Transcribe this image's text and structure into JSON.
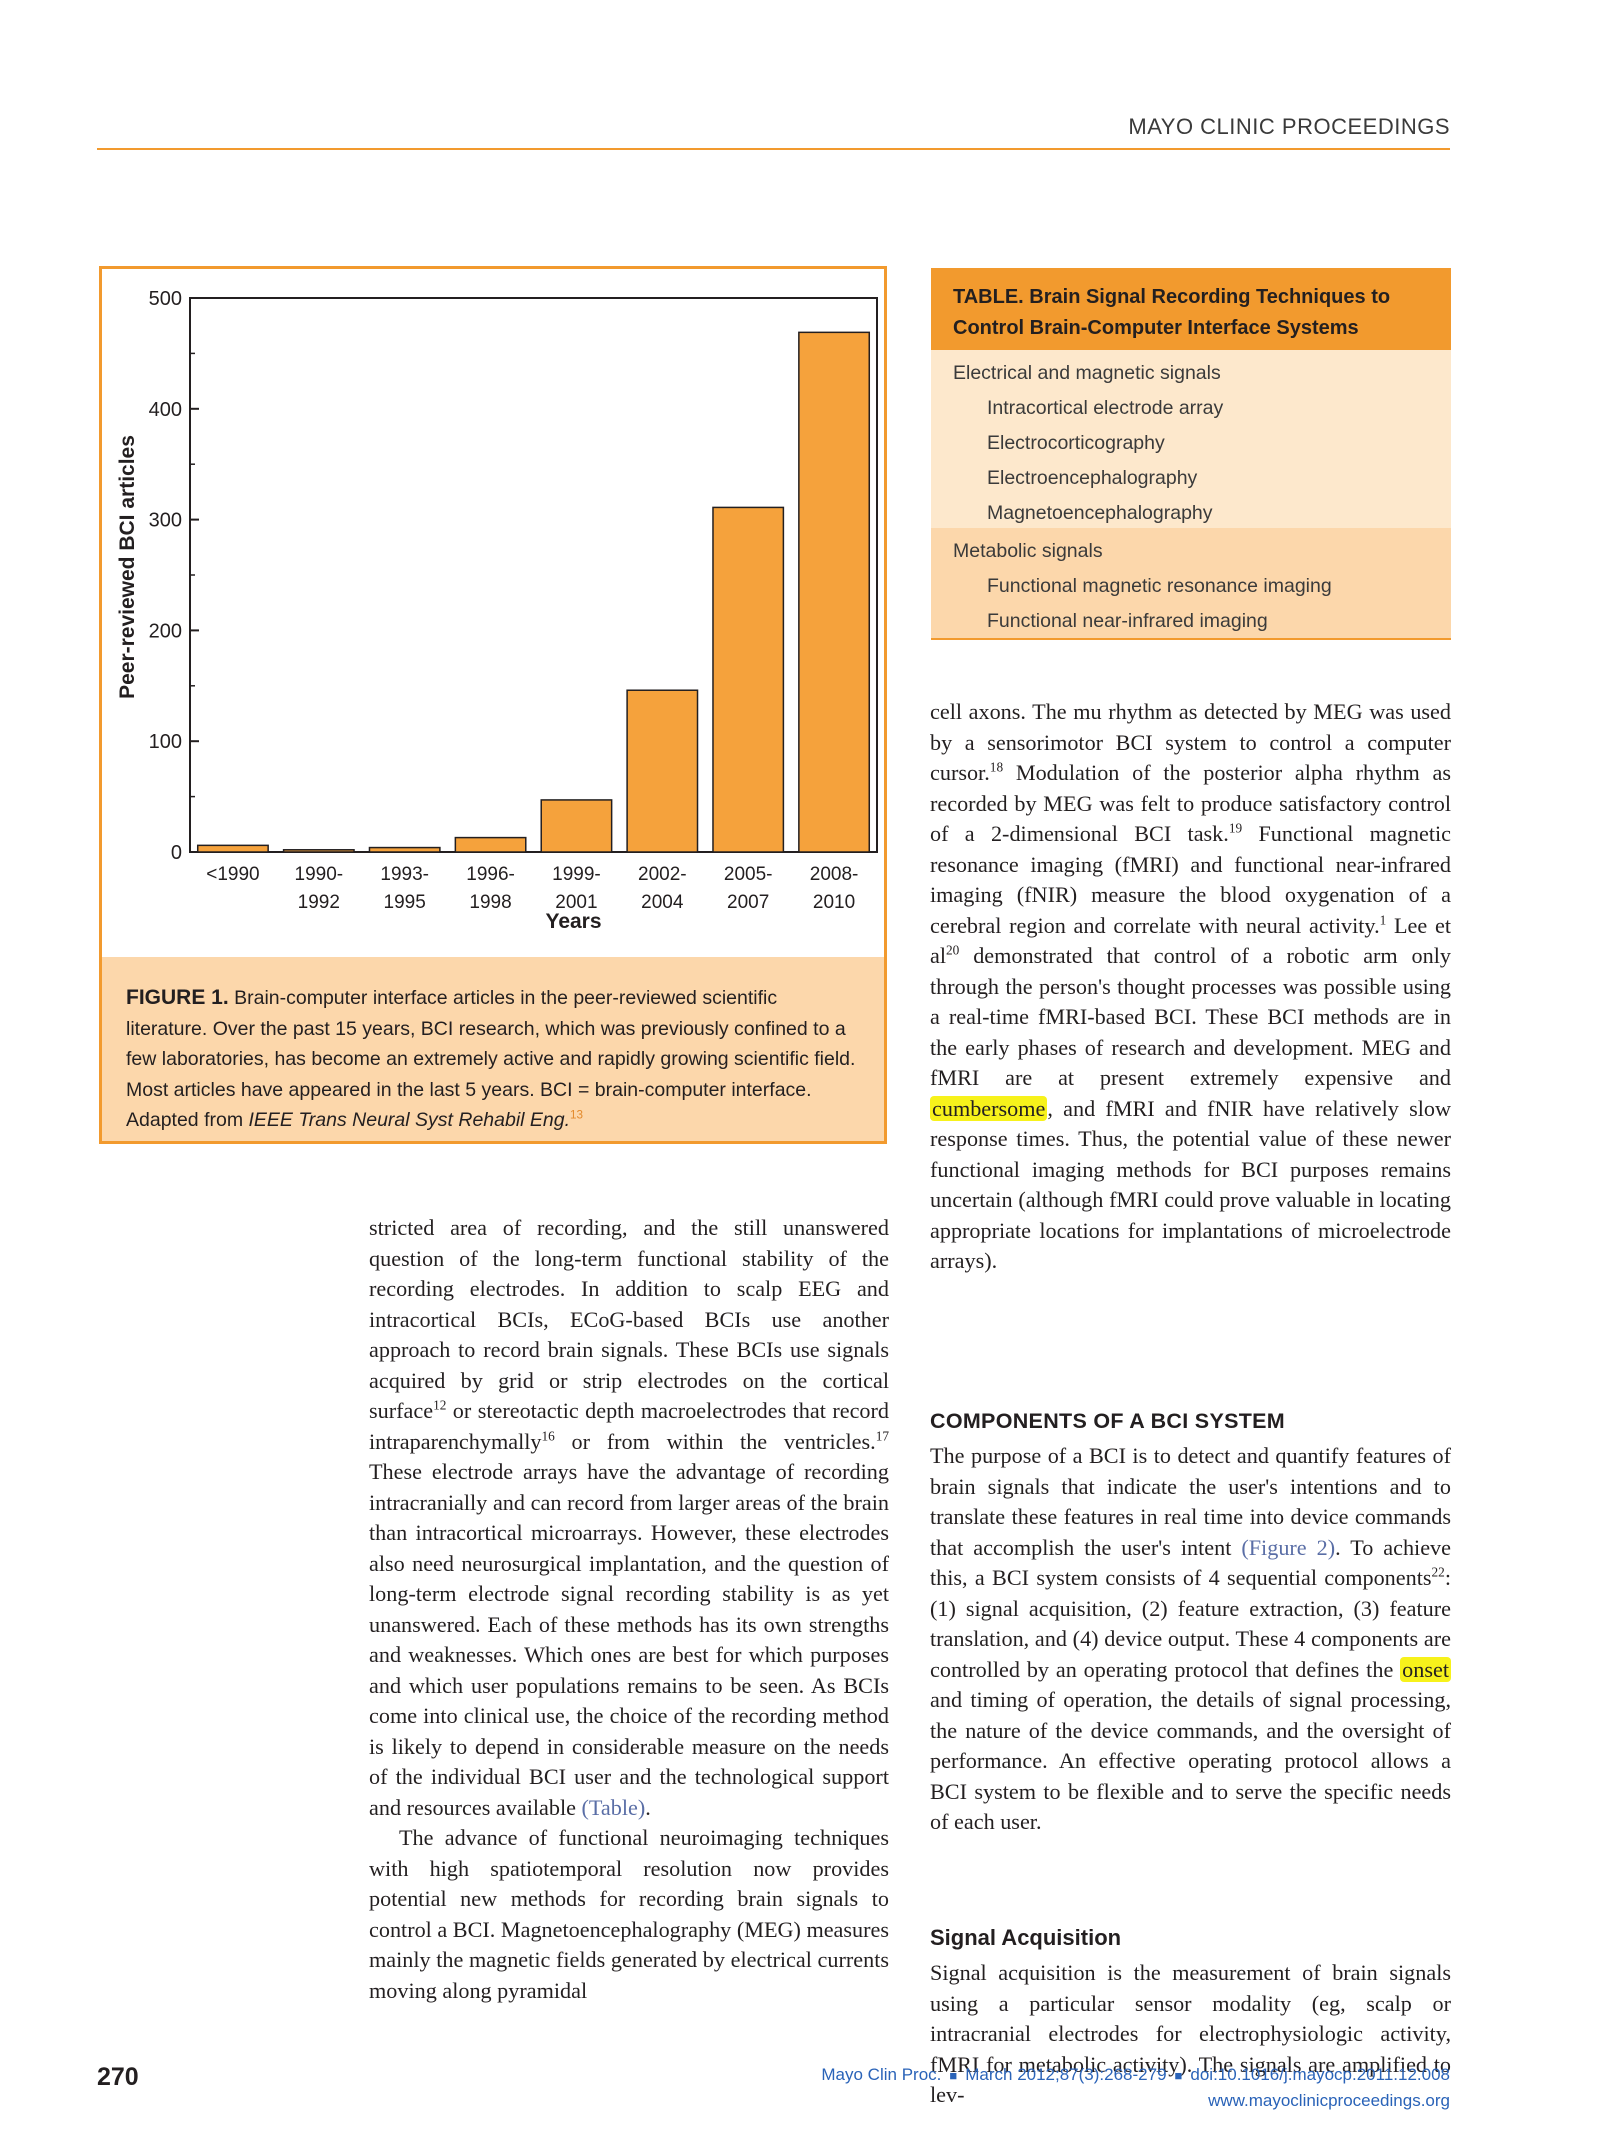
{
  "header": {
    "running_head": "MAYO CLINIC PROCEEDINGS"
  },
  "figure": {
    "caption_label": "FIGURE 1.",
    "caption_text": " Brain-computer interface articles in the peer-reviewed scientific literature. Over the past 15 years, BCI research, which was previously confined to a few laboratories, has become an extremely active and rapidly growing scientific field. Most articles have appeared in the last 5 years. BCI = brain-computer interface. Adapted from ",
    "caption_source": "IEEE Trans Neural Syst Rehabil Eng.",
    "caption_ref": "13"
  },
  "chart_data": {
    "type": "bar",
    "categories": [
      [
        "<1990"
      ],
      [
        "1990-",
        "1992"
      ],
      [
        "1993-",
        "1995"
      ],
      [
        "1996-",
        "1998"
      ],
      [
        "1999-",
        "2001"
      ],
      [
        "2002-",
        "2004"
      ],
      [
        "2005-",
        "2007"
      ],
      [
        "2008-",
        "2010"
      ]
    ],
    "values": [
      6,
      2,
      4,
      13,
      47,
      146,
      311,
      469
    ],
    "xlabel": "Years",
    "ylabel": "Peer-reviewed BCI articles",
    "ylim": [
      0,
      500
    ],
    "yticks": [
      0,
      100,
      200,
      300,
      400,
      500
    ],
    "bar_color": "#f5a23c",
    "edge_color": "#231f20",
    "grid": false
  },
  "table": {
    "title_line1": "TABLE.  Brain Signal Recording Techniques to",
    "title_line2": "Control Brain-Computer Interface Systems",
    "group1": {
      "label": "Electrical and magnetic signals",
      "items": [
        "Intracortical electrode array",
        "Electrocorticography",
        "Electroencephalography",
        "Magnetoencephalography"
      ]
    },
    "group2": {
      "label": "Metabolic signals",
      "items": [
        "Functional magnetic resonance imaging",
        "Functional near-infrared imaging"
      ]
    }
  },
  "left_column": {
    "p1_a": "stricted area of recording, and the still unanswered question of the long-term functional stability of the recording electrodes. In addition to scalp EEG and intracortical BCIs, ECoG-based BCIs use another approach to record brain signals. These BCIs use signals acquired by grid or strip electrodes on the cortical surface",
    "ref12": "12",
    "p1_b": " or stereotactic depth macroelectrodes that record intraparenchymally",
    "ref16": "16",
    "p1_c": " or from within the ventricles.",
    "ref17": "17",
    "p1_d": " These electrode arrays have the advantage of recording intracranially and can record from larger areas of the brain than intracortical microarrays. However, these electrodes also need neurosurgical implantation, and the question of long-term electrode signal recording stability is as yet unanswered. Each of these methods has its own strengths and weaknesses. Which ones are best for which purposes and which user populations remains to be seen. As BCIs come into clinical use, the choice of the recording method is likely to depend in considerable measure on the needs of the individual BCI user and the technological support and resources available ",
    "table_link": "(Table)",
    "p1_end": ".",
    "p2": "The advance of functional neuroimaging techniques with high spatiotemporal resolution now provides potential new methods for recording brain signals to control a BCI. Magnetoencephalography (MEG) measures mainly the magnetic fields generated by electrical currents moving along pyramidal"
  },
  "right_column": {
    "p1_a": "cell axons. The mu rhythm as detected by MEG was used by a sensorimotor BCI system to control a computer cursor.",
    "ref18": "18",
    "p1_b": " Modulation of the posterior alpha rhythm as recorded by MEG was felt to produce satisfactory control of a 2-dimensional BCI task.",
    "ref19": "19",
    "p1_c": " Functional magnetic resonance imaging (fMRI) and functional near-infrared imaging (fNIR) measure the blood oxygenation of a cerebral region and correlate with neural activity.",
    "ref1": "1",
    "p1_d": " Lee et al",
    "ref20": "20",
    "p1_e": " demonstrated that control of a robotic arm only through the person's thought processes was possible using a real-time fMRI-based BCI. These BCI methods are in the early phases of research and development. MEG and fMRI are at present extremely expensive and ",
    "highlight1": "cumbersome",
    "p1_f": ", and fMRI and fNIR have relatively slow response times. Thus, the potential value of these newer functional imaging methods for BCI purposes remains uncertain (although fMRI could prove valuable in locating appropriate locations for implantations of microelectrode arrays).",
    "section_heading": "COMPONENTS OF A BCI SYSTEM",
    "p2_a": "The purpose of a BCI is to detect and quantify features of brain signals that indicate the user's intentions and to translate these features in real time into device commands that accomplish the user's intent ",
    "figure2_link": "(Figure 2)",
    "p2_b": ". To achieve this, a BCI system consists of 4 sequential components",
    "ref22": "22",
    "p2_c": ": (1) signal acquisition, (2) feature extraction, (3) feature translation, and (4) device output. These 4 components are controlled by an operating protocol that defines the ",
    "highlight2": "onset",
    "p2_d": " and timing of operation, the details of signal processing, the nature of the device commands, and the oversight of performance. An effective operating protocol allows a BCI system to be flexible and to serve the specific needs of each user.",
    "subheading": "Signal Acquisition",
    "p3": "Signal acquisition is the measurement of brain signals using a particular sensor modality (eg, scalp or intracranial electrodes for electrophysiologic activity, fMRI for metabolic activity). The signals are amplified to lev-"
  },
  "footer": {
    "page_number": "270",
    "citation_journal": "Mayo Clin Proc.",
    "citation_date": "March 2012;87(3):268-279",
    "citation_doi": "doi:10.1016/j.mayocp.2011.12.008",
    "website": "www.mayoclinicproceedings.org"
  },
  "colors": {
    "accent_orange": "#f29a2e",
    "caption_bg": "#fcd7ab",
    "table_light": "#fde8cc",
    "highlight": "#f7f21b",
    "link_blue": "#2a63b8"
  }
}
